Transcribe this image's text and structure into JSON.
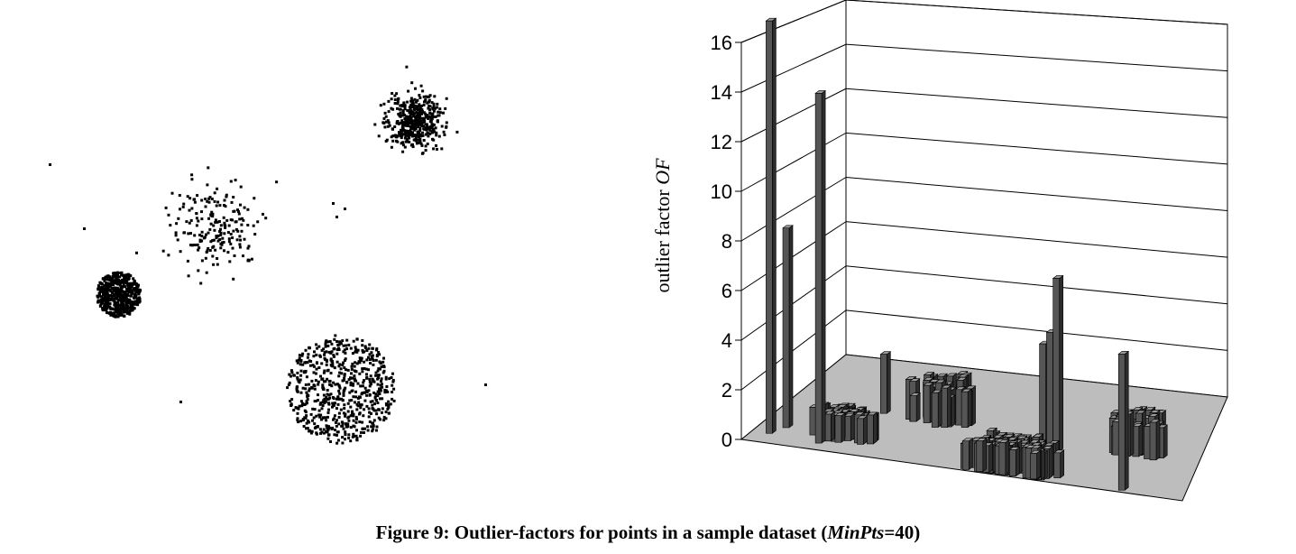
{
  "caption": {
    "prefix": "Figure 9: Outlier-factors for points in a sample dataset (",
    "param_name": "MinPts",
    "param_value": "=40)"
  },
  "chart_data": [
    {
      "type": "scatter",
      "title": "",
      "xlabel": "",
      "ylabel": "",
      "grid": false,
      "clusters": [
        {
          "name": "",
          "center": [
            237,
            250
          ],
          "radius": 55,
          "count": 200,
          "distribution": "gaussian-sparse"
        },
        {
          "name": "",
          "center": [
            130,
            325
          ],
          "radius": 25,
          "count": 550,
          "distribution": "uniform-disk-dense"
        },
        {
          "name": "",
          "center": [
            458,
            133
          ],
          "radius": 33,
          "count": 450,
          "distribution": "gaussian-dense"
        },
        {
          "name": "",
          "center": [
            377,
            430
          ],
          "radius": 60,
          "count": 650,
          "distribution": "uniform-disk"
        }
      ],
      "outliers": [
        [
          54,
          181
        ],
        [
          92,
          252
        ],
        [
          368,
          224
        ],
        [
          372,
          239
        ],
        [
          381,
          230
        ],
        [
          199,
          444
        ],
        [
          537,
          425
        ]
      ]
    },
    {
      "type": "bar3d",
      "title": "",
      "zlabel": "outlier factor OF",
      "zlabel_plain": "outlier factor ",
      "zlabel_italic": "OF",
      "zlim": [
        0,
        16
      ],
      "zticks": [
        "0",
        "2",
        "4",
        "6",
        "8",
        "10",
        "12",
        "14",
        "16"
      ],
      "grid": true,
      "outlier_bars": [
        {
          "u": 0.04,
          "v": 0.9,
          "value": 16.8
        },
        {
          "u": 0.06,
          "v": 0.82,
          "value": 8.2
        },
        {
          "u": 0.16,
          "v": 0.93,
          "value": 14.2
        },
        {
          "u": 0.23,
          "v": 0.55,
          "value": 2.5
        },
        {
          "u": 0.63,
          "v": 0.65,
          "value": 4.2
        },
        {
          "u": 0.65,
          "v": 0.67,
          "value": 4.8
        },
        {
          "u": 0.67,
          "v": 0.7,
          "value": 7.2
        },
        {
          "u": 0.86,
          "v": 0.98,
          "value": 5.5
        }
      ],
      "clusters": [
        {
          "name": "",
          "u": 0.2,
          "v": 0.85,
          "radius": 0.07,
          "count": 40,
          "min": 1.0,
          "max": 1.2
        },
        {
          "name": "",
          "u": 0.36,
          "v": 0.56,
          "radius": 0.08,
          "count": 45,
          "min": 1.0,
          "max": 2.0
        },
        {
          "name": "",
          "u": 0.6,
          "v": 0.95,
          "radius": 0.11,
          "count": 90,
          "min": 1.0,
          "max": 1.3
        },
        {
          "name": "",
          "u": 0.85,
          "v": 0.62,
          "radius": 0.07,
          "count": 35,
          "min": 1.0,
          "max": 1.8
        }
      ]
    }
  ]
}
